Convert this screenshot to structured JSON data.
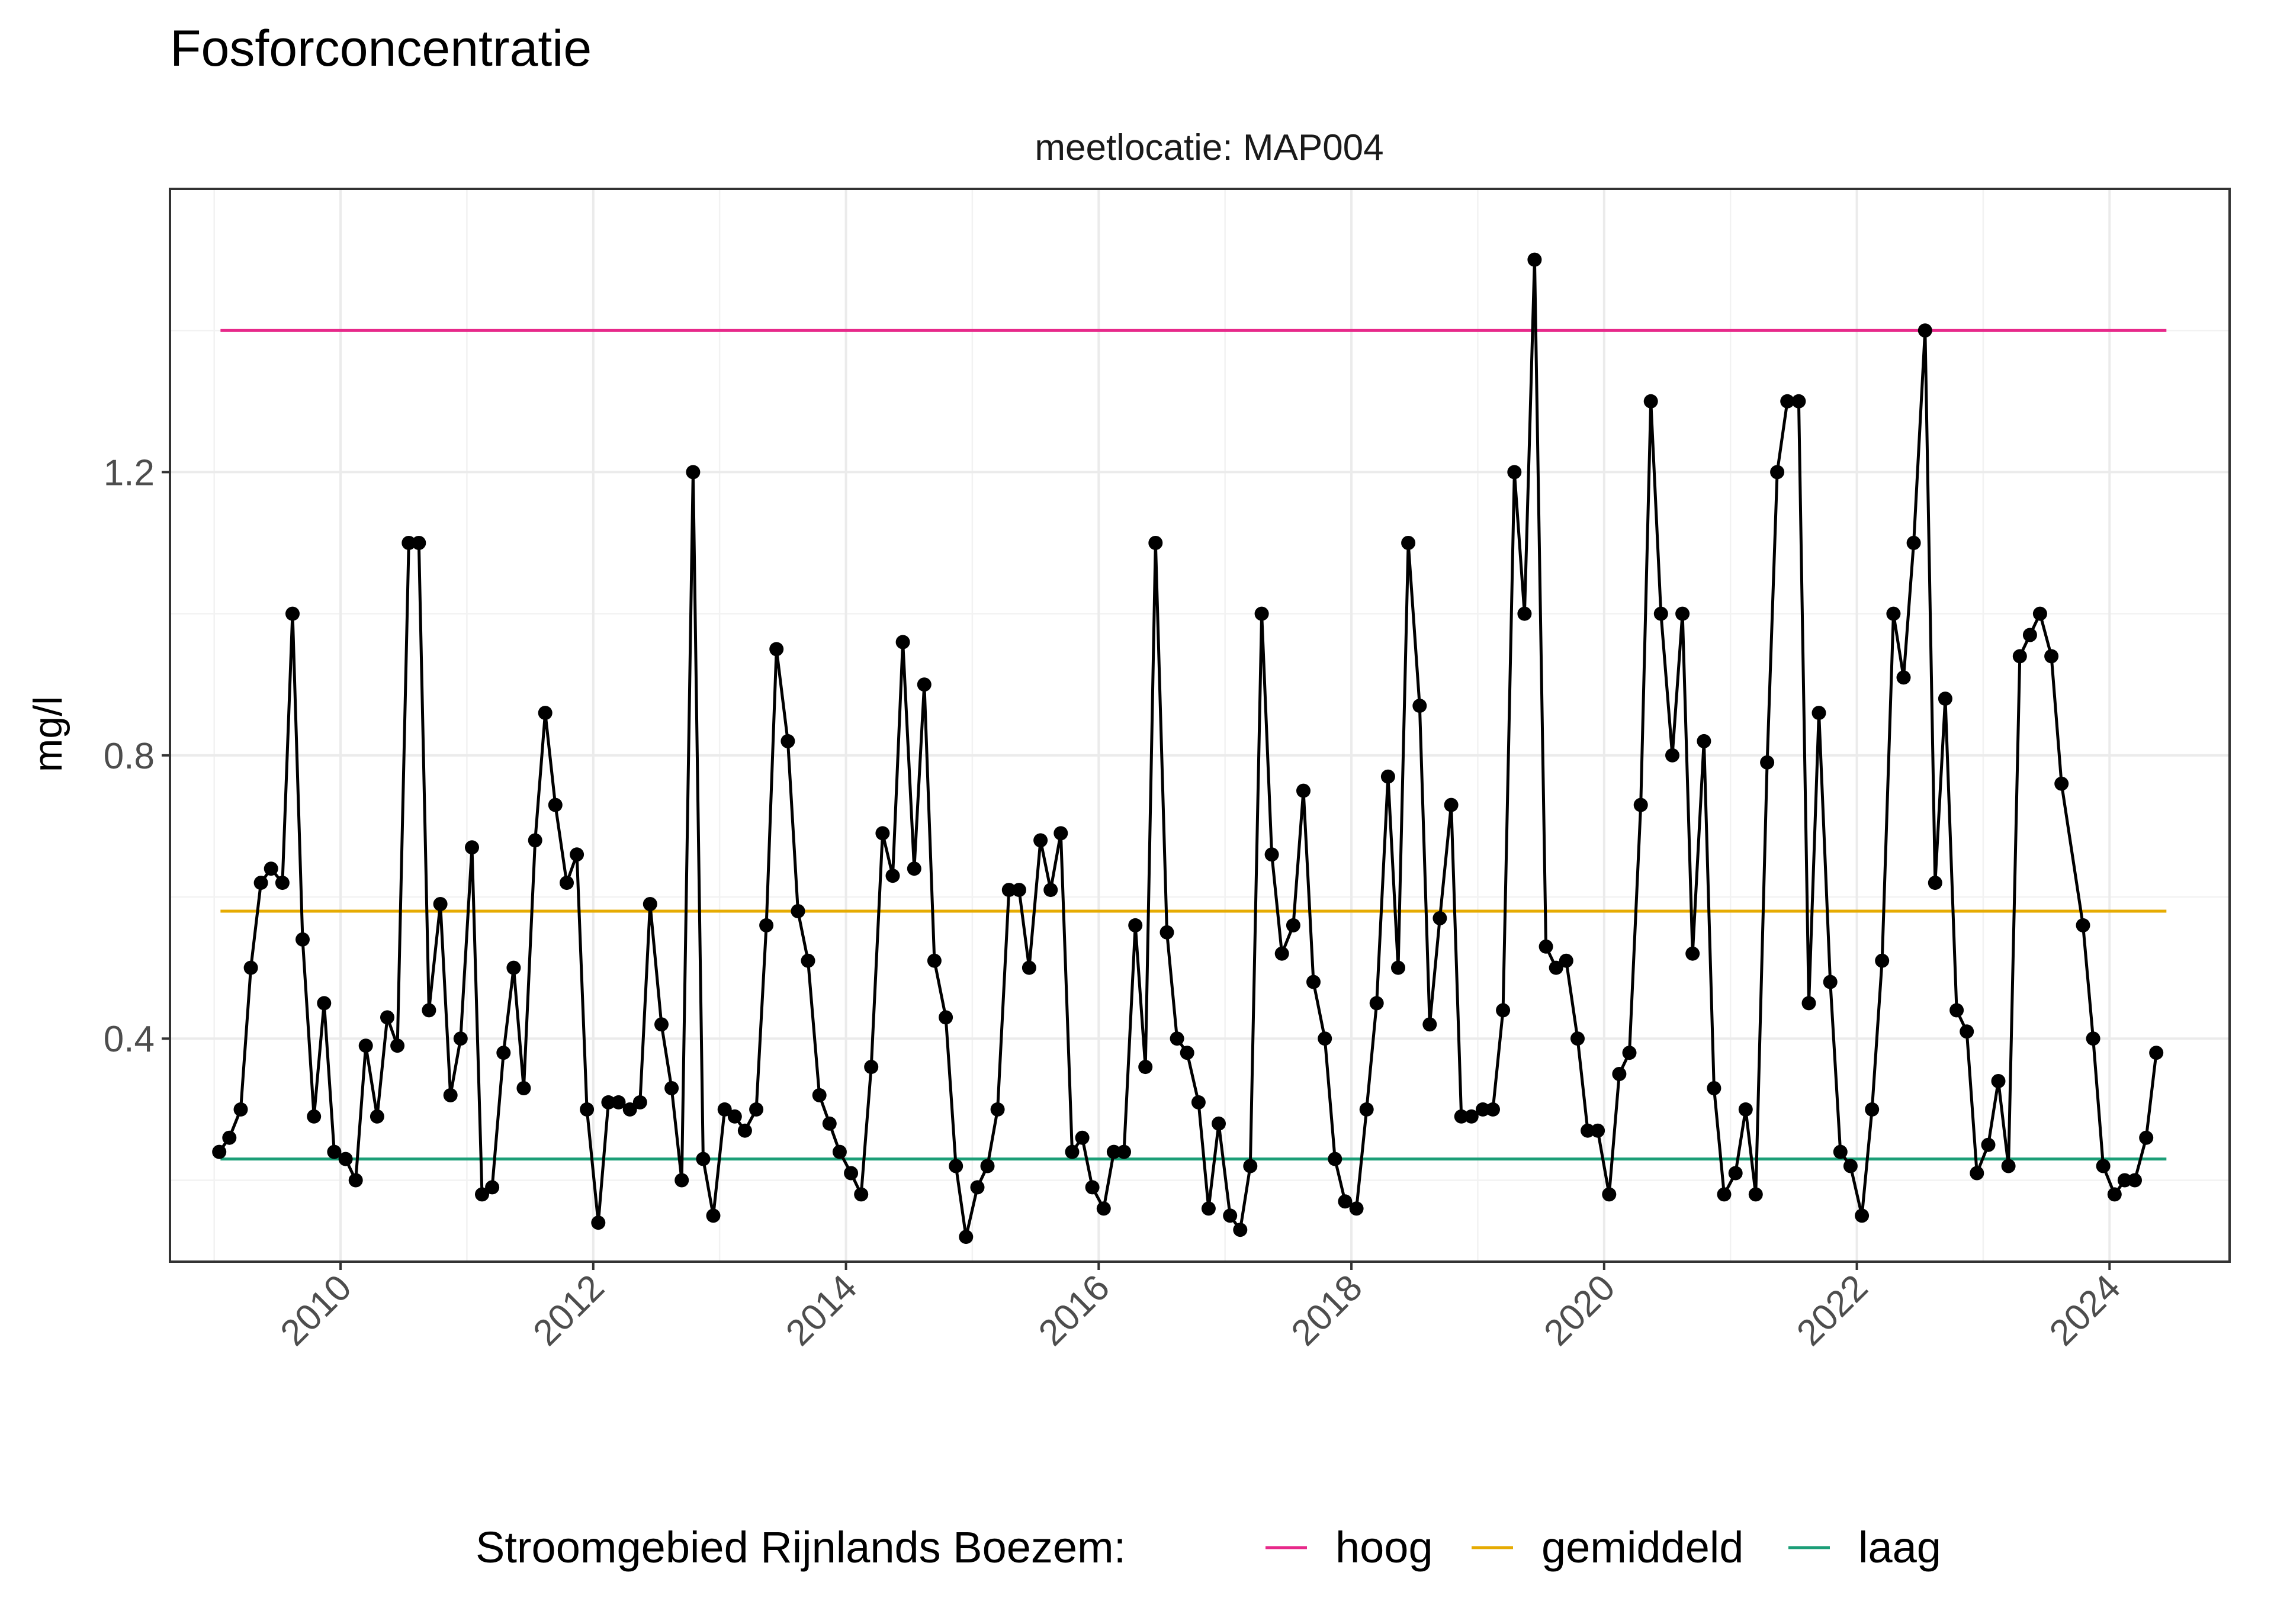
{
  "chart_data": {
    "type": "line",
    "title": "Fosforconcentratie",
    "facet_label": "meetlocatie: MAP004",
    "ylabel": "mg/l",
    "xlabel": "",
    "xlim": [
      2008.65,
      2024.95
    ],
    "ylim": [
      0.085,
      1.6
    ],
    "x_ticks": [
      2010,
      2012,
      2014,
      2016,
      2018,
      2020,
      2022,
      2024
    ],
    "y_ticks": [
      0.4,
      0.8,
      1.2
    ],
    "grid": true,
    "legend": {
      "position": "bottom",
      "title": "Stroomgebied Rijnlands Boezem:",
      "items": [
        {
          "label": "hoog",
          "color": "#e7298a"
        },
        {
          "label": "gemiddeld",
          "color": "#e6ab02"
        },
        {
          "label": "laag",
          "color": "#1b9e77"
        }
      ]
    },
    "reference_lines": [
      {
        "name": "hoog",
        "y": 1.4,
        "x": [
          2009.05,
          2024.45
        ],
        "color": "#e7298a"
      },
      {
        "name": "gemiddeld",
        "y": 0.58,
        "x": [
          2009.05,
          2024.45
        ],
        "color": "#e6ab02"
      },
      {
        "name": "laag",
        "y": 0.23,
        "x": [
          2009.05,
          2024.45
        ],
        "color": "#1b9e77"
      }
    ],
    "series": [
      {
        "color": "#000000",
        "x": [
          2009.04,
          2009.12,
          2009.21,
          2009.29,
          2009.37,
          2009.45,
          2009.54,
          2009.62,
          2009.7,
          2009.79,
          2009.87,
          2009.95,
          2010.04,
          2010.12,
          2010.2,
          2010.29,
          2010.37,
          2010.45,
          2010.54,
          2010.62,
          2010.7,
          2010.79,
          2010.87,
          2010.95,
          2011.04,
          2011.12,
          2011.2,
          2011.29,
          2011.37,
          2011.45,
          2011.54,
          2011.62,
          2011.7,
          2011.79,
          2011.87,
          2011.95,
          2012.04,
          2012.12,
          2012.2,
          2012.29,
          2012.37,
          2012.45,
          2012.54,
          2012.62,
          2012.7,
          2012.79,
          2012.87,
          2012.95,
          2013.04,
          2013.12,
          2013.2,
          2013.29,
          2013.37,
          2013.45,
          2013.54,
          2013.62,
          2013.7,
          2013.79,
          2013.87,
          2013.95,
          2014.04,
          2014.12,
          2014.2,
          2014.29,
          2014.37,
          2014.45,
          2014.54,
          2014.62,
          2014.7,
          2014.79,
          2014.87,
          2014.95,
          2015.04,
          2015.12,
          2015.2,
          2015.29,
          2015.37,
          2015.45,
          2015.54,
          2015.62,
          2015.7,
          2015.79,
          2015.87,
          2015.95,
          2016.04,
          2016.12,
          2016.2,
          2016.29,
          2016.37,
          2016.45,
          2016.54,
          2016.62,
          2016.7,
          2016.79,
          2016.87,
          2016.95,
          2017.04,
          2017.12,
          2017.2,
          2017.29,
          2017.37,
          2017.45,
          2017.54,
          2017.62,
          2017.7,
          2017.79,
          2017.87,
          2017.95,
          2018.04,
          2018.12,
          2018.2,
          2018.29,
          2018.37,
          2018.45,
          2018.54,
          2018.62,
          2018.7,
          2018.79,
          2018.87,
          2018.95,
          2019.04,
          2019.12,
          2019.2,
          2019.29,
          2019.37,
          2019.45,
          2019.54,
          2019.62,
          2019.7,
          2019.79,
          2019.87,
          2019.95,
          2020.04,
          2020.12,
          2020.2,
          2020.29,
          2020.37,
          2020.45,
          2020.54,
          2020.62,
          2020.7,
          2020.79,
          2020.87,
          2020.95,
          2021.04,
          2021.12,
          2021.2,
          2021.29,
          2021.37,
          2021.45,
          2021.54,
          2021.62,
          2021.7,
          2021.79,
          2021.87,
          2021.95,
          2022.04,
          2022.12,
          2022.2,
          2022.29,
          2022.37,
          2022.45,
          2022.54,
          2022.62,
          2022.7,
          2022.79,
          2022.87,
          2022.95,
          2023.04,
          2023.12,
          2023.2,
          2023.29,
          2023.37,
          2023.45,
          2023.54,
          2023.62,
          2023.79,
          2023.87,
          2023.95,
          2024.04,
          2024.12,
          2024.2,
          2024.29,
          2024.37
        ],
        "y": [
          0.24,
          0.26,
          0.3,
          0.5,
          0.62,
          0.64,
          0.62,
          1.0,
          0.54,
          0.29,
          0.45,
          0.24,
          0.23,
          0.2,
          0.39,
          0.29,
          0.43,
          0.39,
          1.1,
          1.1,
          0.44,
          0.59,
          0.32,
          0.4,
          0.67,
          0.18,
          0.19,
          0.38,
          0.5,
          0.33,
          0.68,
          0.86,
          0.73,
          0.62,
          0.66,
          0.3,
          0.14,
          0.31,
          0.31,
          0.3,
          0.31,
          0.59,
          0.42,
          0.33,
          0.2,
          1.2,
          0.23,
          0.15,
          0.3,
          0.29,
          0.27,
          0.3,
          0.56,
          0.95,
          0.82,
          0.58,
          0.51,
          0.32,
          0.28,
          0.24,
          0.21,
          0.18,
          0.36,
          0.69,
          0.63,
          0.96,
          0.64,
          0.9,
          0.51,
          0.43,
          0.22,
          0.12,
          0.19,
          0.22,
          0.3,
          0.61,
          0.61,
          0.5,
          0.68,
          0.61,
          0.69,
          0.24,
          0.26,
          0.19,
          0.16,
          0.24,
          0.24,
          0.56,
          0.36,
          1.1,
          0.55,
          0.4,
          0.38,
          0.31,
          0.16,
          0.28,
          0.15,
          0.13,
          0.22,
          1.0,
          0.66,
          0.52,
          0.56,
          0.75,
          0.48,
          0.4,
          0.23,
          0.17,
          0.16,
          0.3,
          0.45,
          0.77,
          0.5,
          1.1,
          0.87,
          0.42,
          0.57,
          0.73,
          0.29,
          0.29,
          0.3,
          0.3,
          0.44,
          1.2,
          1.0,
          1.5,
          0.53,
          0.5,
          0.51,
          0.4,
          0.27,
          0.27,
          0.18,
          0.35,
          0.38,
          0.73,
          1.3,
          1.0,
          0.8,
          1.0,
          0.52,
          0.82,
          0.33,
          0.18,
          0.21,
          0.3,
          0.18,
          0.79,
          1.2,
          1.3,
          1.3,
          0.45,
          0.86,
          0.48,
          0.24,
          0.22,
          0.15,
          0.3,
          0.51,
          1.0,
          0.91,
          1.1,
          1.4,
          0.62,
          0.88,
          0.44,
          0.41,
          0.21,
          0.25,
          0.34,
          0.22,
          0.94,
          0.97,
          1.0,
          0.94,
          0.76,
          0.56,
          0.4,
          0.22,
          0.18,
          0.2,
          0.2,
          0.26,
          0.38
        ]
      }
    ]
  }
}
